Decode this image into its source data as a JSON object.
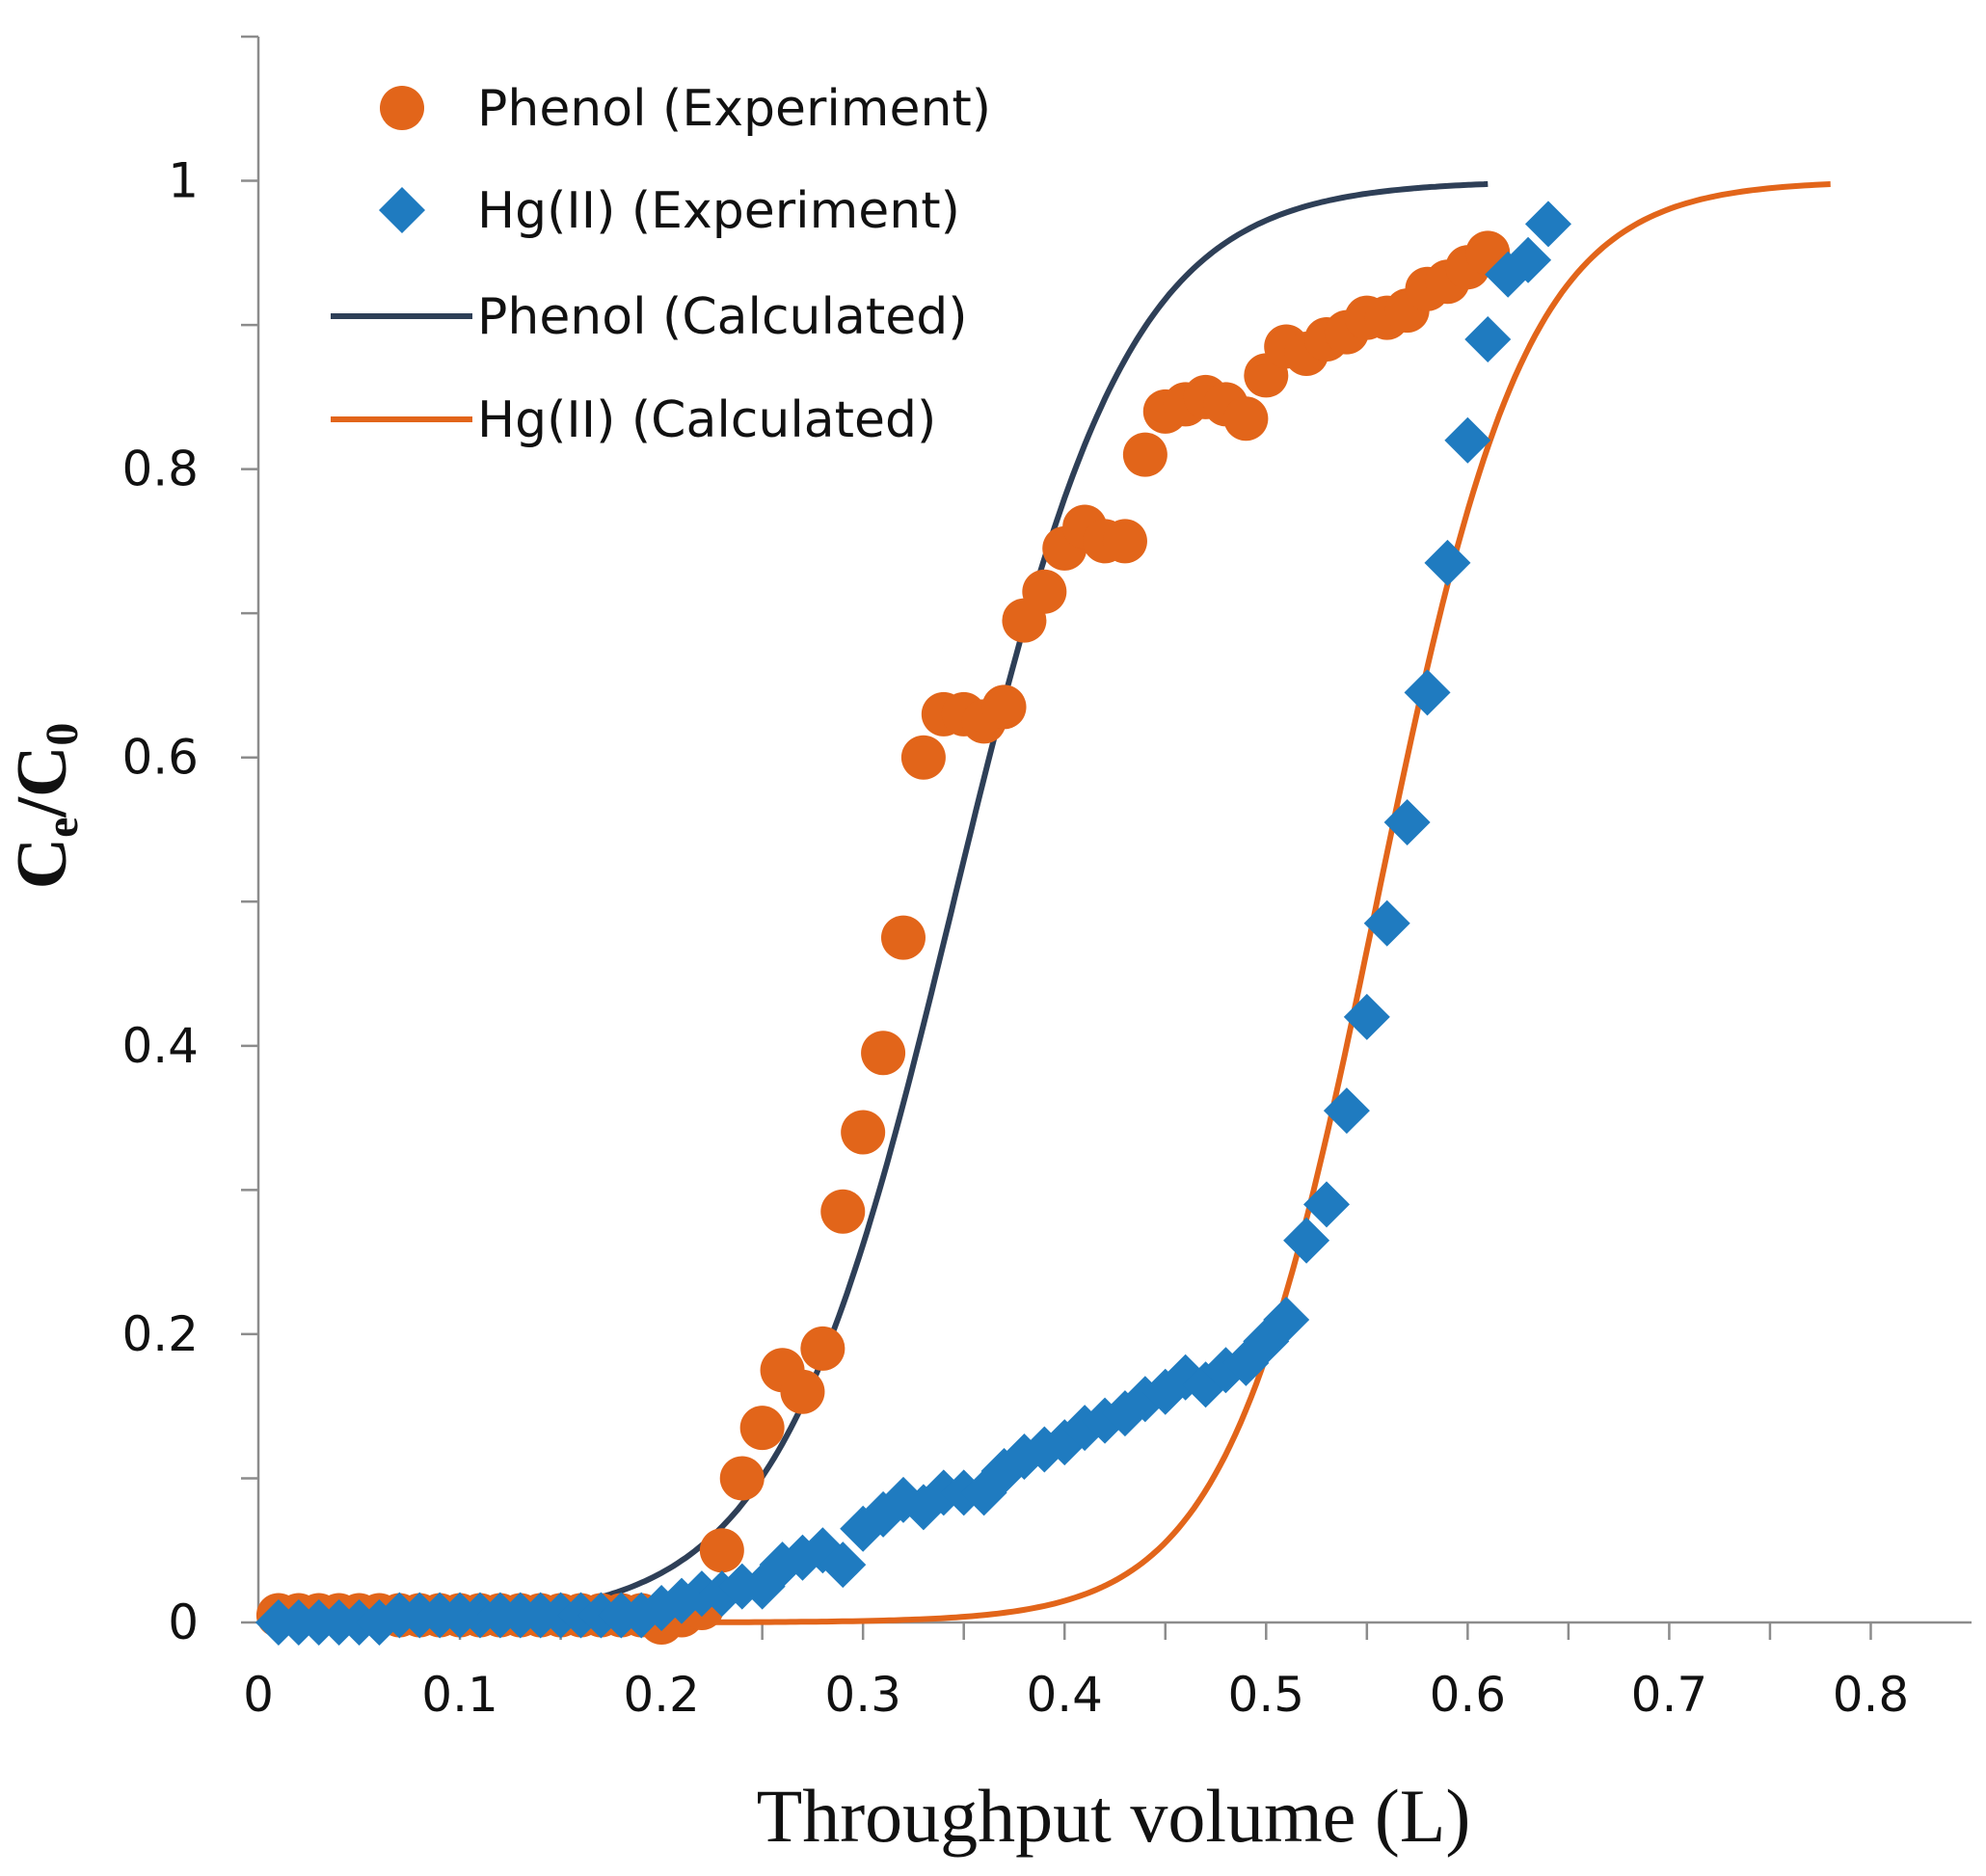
{
  "chart_data": {
    "type": "scatter",
    "title": "",
    "xlabel": "Throughput volume (L)",
    "ylabel": {
      "base1": "C",
      "sub1": "e",
      "mid": "/C",
      "sub2": "0"
    },
    "xlim": [
      0,
      0.85
    ],
    "ylim": [
      0,
      1.1
    ],
    "xticks": [
      0,
      0.1,
      0.2,
      0.3,
      0.4,
      0.5,
      0.6,
      0.7,
      0.8
    ],
    "xtick_labels": [
      "0",
      "0.1",
      "0.2",
      "0.3",
      "0.4",
      "0.5",
      "0.6",
      "0.7",
      "0.8"
    ],
    "yticks": [
      0,
      0.2,
      0.4,
      0.6,
      0.8,
      1
    ],
    "ytick_labels": [
      "0",
      "0.2",
      "0.4",
      "0.6",
      "0.8",
      "1"
    ],
    "y_minor_step": 0.1,
    "x_minor_step": 0.05,
    "legend_position": "top-left",
    "series": [
      {
        "name": "Phenol (Experiment)",
        "kind": "points",
        "marker": "circle",
        "color": "#E2651A",
        "x": [
          0.01,
          0.02,
          0.03,
          0.04,
          0.05,
          0.06,
          0.07,
          0.08,
          0.09,
          0.1,
          0.11,
          0.12,
          0.13,
          0.14,
          0.15,
          0.16,
          0.17,
          0.18,
          0.19,
          0.2,
          0.21,
          0.22,
          0.23,
          0.24,
          0.25,
          0.26,
          0.27,
          0.28,
          0.29,
          0.3,
          0.31,
          0.32,
          0.33,
          0.34,
          0.35,
          0.36,
          0.37,
          0.38,
          0.39,
          0.4,
          0.41,
          0.42,
          0.43,
          0.44,
          0.45,
          0.46,
          0.47,
          0.48,
          0.49,
          0.5,
          0.51,
          0.52,
          0.53,
          0.54,
          0.55,
          0.56,
          0.57,
          0.58,
          0.59,
          0.6,
          0.61
        ],
        "y": [
          0.005,
          0.005,
          0.005,
          0.005,
          0.005,
          0.005,
          0.005,
          0.005,
          0.005,
          0.005,
          0.005,
          0.005,
          0.005,
          0.005,
          0.005,
          0.005,
          0.005,
          0.005,
          0.005,
          0.0,
          0.005,
          0.01,
          0.05,
          0.1,
          0.135,
          0.175,
          0.16,
          0.19,
          0.285,
          0.34,
          0.395,
          0.475,
          0.6,
          0.63,
          0.63,
          0.625,
          0.635,
          0.695,
          0.715,
          0.745,
          0.76,
          0.75,
          0.75,
          0.81,
          0.84,
          0.845,
          0.85,
          0.845,
          0.835,
          0.865,
          0.885,
          0.88,
          0.89,
          0.895,
          0.905,
          0.905,
          0.91,
          0.925,
          0.93,
          0.94,
          0.95
        ]
      },
      {
        "name": "Hg(II) (Experiment)",
        "kind": "points",
        "marker": "diamond",
        "color": "#1F7BC0",
        "x": [
          0.01,
          0.02,
          0.03,
          0.04,
          0.05,
          0.06,
          0.07,
          0.08,
          0.09,
          0.1,
          0.11,
          0.12,
          0.13,
          0.14,
          0.15,
          0.16,
          0.17,
          0.18,
          0.19,
          0.2,
          0.21,
          0.22,
          0.23,
          0.24,
          0.25,
          0.26,
          0.27,
          0.28,
          0.29,
          0.3,
          0.31,
          0.32,
          0.33,
          0.34,
          0.35,
          0.36,
          0.37,
          0.38,
          0.39,
          0.4,
          0.41,
          0.42,
          0.43,
          0.44,
          0.45,
          0.46,
          0.47,
          0.48,
          0.49,
          0.5,
          0.51,
          0.52,
          0.53,
          0.54,
          0.55,
          0.56,
          0.57,
          0.58,
          0.59,
          0.6,
          0.61,
          0.62,
          0.63,
          0.64
        ],
        "y": [
          0.0,
          0.0,
          0.0,
          0.0,
          0.0,
          0.0,
          0.005,
          0.005,
          0.005,
          0.005,
          0.005,
          0.005,
          0.005,
          0.005,
          0.005,
          0.005,
          0.005,
          0.005,
          0.005,
          0.01,
          0.015,
          0.02,
          0.02,
          0.025,
          0.025,
          0.04,
          0.045,
          0.05,
          0.04,
          0.065,
          0.075,
          0.085,
          0.08,
          0.09,
          0.09,
          0.09,
          0.105,
          0.115,
          0.12,
          0.125,
          0.135,
          0.14,
          0.145,
          0.155,
          0.16,
          0.17,
          0.165,
          0.175,
          0.18,
          0.195,
          0.21,
          0.265,
          0.29,
          0.355,
          0.42,
          0.485,
          0.555,
          0.645,
          0.735,
          0.82,
          0.89,
          0.935,
          0.945,
          0.97
        ]
      },
      {
        "name": "Phenol (Calculated)",
        "kind": "line",
        "color": "#2E3F57",
        "model": "thomas",
        "x_start": 0.01,
        "x_end": 0.61,
        "midpoint": 0.345,
        "slope": 23.0
      },
      {
        "name": "Hg(II) (Calculated)",
        "kind": "line",
        "color": "#E2651A",
        "model": "thomas",
        "x_start": 0.01,
        "x_end": 0.78,
        "midpoint": 0.555,
        "slope": 27.0
      }
    ]
  }
}
